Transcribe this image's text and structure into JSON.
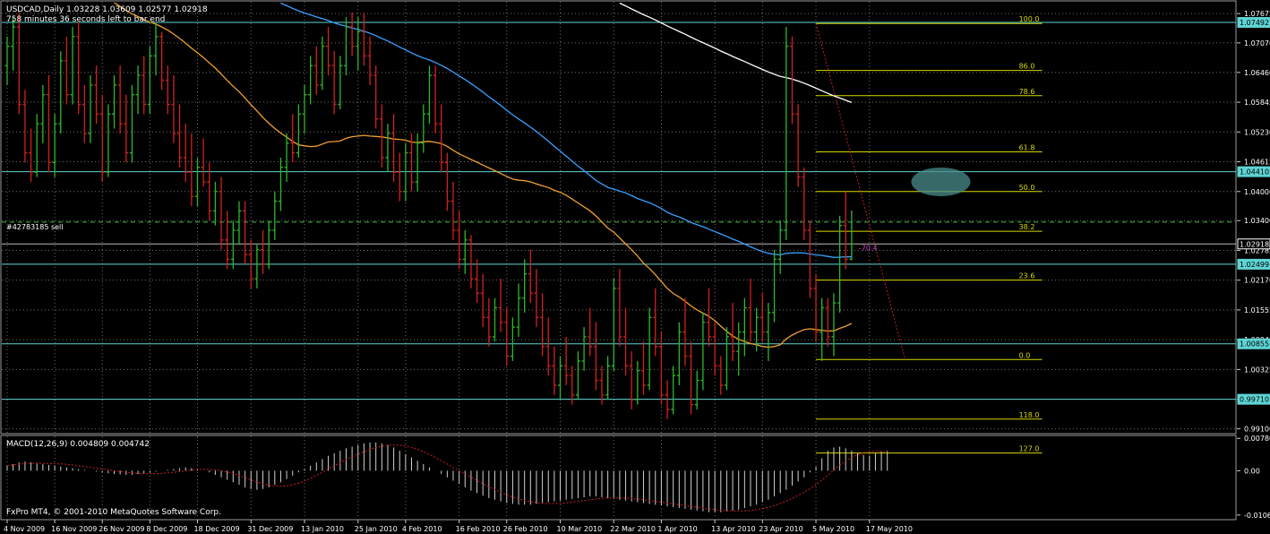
{
  "header": {
    "symbol_line": "USDCAD,Daily  1.03228 1.03609 1.02577 1.02918",
    "timer_line": "758 minutes 36 seconds left to bar end"
  },
  "order_label": "#42783185 sell",
  "pips_label": "-70.4",
  "macd_header": "MACD(12,26,9) 0.004809 0.004742",
  "copyright": "FxPro MT4, © 2001-2010 MetaQuotes Software Corp.",
  "colors": {
    "bull": "#2db82d",
    "bear": "#d22020",
    "grid": "#707070",
    "hline": "#5fd4d4",
    "fib": "#d8d800",
    "ma_orange": "#f0a030",
    "ma_blue": "#3aa0ff",
    "ma_white": "#ffffff",
    "trade": "#40c040",
    "macd_signal": "#c82020",
    "ellipse": "#4a8c8c"
  },
  "chart_data": [
    {
      "type": "candlestick-bars",
      "title": "USDCAD,Daily",
      "ylim": [
        0.99,
        1.079
      ],
      "y_tick_labels": [
        "1.07675",
        "1.07070",
        "1.06460",
        "1.05845",
        "1.05230",
        "1.04615",
        "1.04000",
        "1.03400",
        "1.02785",
        "1.02170",
        "1.01555",
        "1.00940",
        "1.00325",
        "0.99710",
        "0.99100"
      ],
      "y_tick_values": [
        1.07675,
        1.0707,
        1.0646,
        1.05845,
        1.0523,
        1.04615,
        1.04,
        1.034,
        1.02785,
        1.0217,
        1.01555,
        1.0094,
        1.00325,
        0.9971,
        0.991
      ],
      "price_labels": [
        {
          "text": "1.07492",
          "value": 1.07492,
          "style": "cyan"
        },
        {
          "text": "1.04410",
          "value": 1.0441,
          "style": "cyan"
        },
        {
          "text": "1.02918",
          "value": 1.02918,
          "style": "white"
        },
        {
          "text": "1.02499",
          "value": 1.02499,
          "style": "cyan"
        },
        {
          "text": "1.00855",
          "value": 1.00855,
          "style": "cyan"
        },
        {
          "text": "0.99710",
          "value": 0.9971,
          "style": "cyan"
        }
      ],
      "horizontal_lines": [
        1.07492,
        1.0441,
        1.02499,
        1.00855,
        0.9971
      ],
      "order_line_value": 1.0337,
      "current_price": 1.02918,
      "x_labels": [
        "4 Nov 2009",
        "16 Nov 2009",
        "26 Nov 2009",
        "8 Dec 2009",
        "18 Dec 2009",
        "31 Dec 2009",
        "13 Jan 2010",
        "25 Jan 2010",
        "4 Feb 2010",
        "16 Feb 2010",
        "26 Feb 2010",
        "10 Mar 2010",
        "22 Mar 2010",
        "1 Apr 2010",
        "13 Apr 2010",
        "23 Apr 2010",
        "5 May 2010",
        "17 May 2010"
      ],
      "x_label_bar_index": [
        0,
        8,
        16,
        24,
        32,
        41,
        50,
        59,
        67,
        76,
        84,
        93,
        102,
        110,
        119,
        127,
        136,
        145
      ],
      "fibonacci": {
        "start_bar": 136,
        "end_bar": 165,
        "levels": [
          {
            "label": "100.0",
            "value": 1.0747
          },
          {
            "label": "86.0",
            "value": 1.065
          },
          {
            "label": "78.6",
            "value": 1.0598
          },
          {
            "label": "61.8",
            "value": 1.0482
          },
          {
            "label": "50.0",
            "value": 1.04
          },
          {
            "label": "38.2",
            "value": 1.0318
          },
          {
            "label": "23.6",
            "value": 1.0217
          },
          {
            "label": "0.0",
            "value": 1.0053
          },
          {
            "label": "118.0",
            "value": 0.993
          },
          {
            "label": "127.0",
            "value": 0.986
          }
        ]
      },
      "bars": [
        [
          1.066,
          1.072,
          1.062,
          1.07
        ],
        [
          1.07,
          1.076,
          1.065,
          1.074
        ],
        [
          1.074,
          1.077,
          1.056,
          1.058
        ],
        [
          1.058,
          1.061,
          1.046,
          1.048
        ],
        [
          1.048,
          1.053,
          1.042,
          1.044
        ],
        [
          1.044,
          1.056,
          1.043,
          1.054
        ],
        [
          1.054,
          1.062,
          1.05,
          1.06
        ],
        [
          1.06,
          1.064,
          1.044,
          1.046
        ],
        [
          1.046,
          1.056,
          1.043,
          1.054
        ],
        [
          1.054,
          1.069,
          1.052,
          1.067
        ],
        [
          1.067,
          1.072,
          1.058,
          1.06
        ],
        [
          1.06,
          1.074,
          1.058,
          1.072
        ],
        [
          1.072,
          1.075,
          1.056,
          1.058
        ],
        [
          1.058,
          1.062,
          1.05,
          1.052
        ],
        [
          1.052,
          1.064,
          1.05,
          1.062
        ],
        [
          1.062,
          1.066,
          1.054,
          1.056
        ],
        [
          1.056,
          1.06,
          1.042,
          1.044
        ],
        [
          1.044,
          1.058,
          1.043,
          1.056
        ],
        [
          1.056,
          1.064,
          1.053,
          1.062
        ],
        [
          1.062,
          1.066,
          1.052,
          1.054
        ],
        [
          1.054,
          1.06,
          1.046,
          1.048
        ],
        [
          1.048,
          1.062,
          1.046,
          1.06
        ],
        [
          1.06,
          1.066,
          1.056,
          1.064
        ],
        [
          1.064,
          1.068,
          1.056,
          1.058
        ],
        [
          1.058,
          1.07,
          1.056,
          1.068
        ],
        [
          1.068,
          1.075,
          1.064,
          1.072
        ],
        [
          1.072,
          1.073,
          1.061,
          1.063
        ],
        [
          1.063,
          1.066,
          1.056,
          1.058
        ],
        [
          1.058,
          1.064,
          1.05,
          1.052
        ],
        [
          1.052,
          1.058,
          1.045,
          1.047
        ],
        [
          1.047,
          1.054,
          1.042,
          1.044
        ],
        [
          1.044,
          1.052,
          1.037,
          1.039
        ],
        [
          1.039,
          1.047,
          1.037,
          1.045
        ],
        [
          1.045,
          1.051,
          1.041,
          1.042
        ],
        [
          1.042,
          1.046,
          1.034,
          1.036
        ],
        [
          1.036,
          1.042,
          1.033,
          1.04
        ],
        [
          1.04,
          1.043,
          1.028,
          1.03
        ],
        [
          1.03,
          1.036,
          1.024,
          1.026
        ],
        [
          1.026,
          1.034,
          1.024,
          1.032
        ],
        [
          1.032,
          1.038,
          1.029,
          1.036
        ],
        [
          1.036,
          1.038,
          1.025,
          1.027
        ],
        [
          1.027,
          1.03,
          1.02,
          1.022
        ],
        [
          1.022,
          1.029,
          1.02,
          1.028
        ],
        [
          1.028,
          1.032,
          1.023,
          1.025
        ],
        [
          1.025,
          1.034,
          1.024,
          1.032
        ],
        [
          1.032,
          1.04,
          1.03,
          1.038
        ],
        [
          1.038,
          1.047,
          1.036,
          1.045
        ],
        [
          1.045,
          1.052,
          1.042,
          1.05
        ],
        [
          1.05,
          1.056,
          1.046,
          1.048
        ],
        [
          1.048,
          1.058,
          1.047,
          1.056
        ],
        [
          1.056,
          1.062,
          1.052,
          1.06
        ],
        [
          1.06,
          1.068,
          1.058,
          1.066
        ],
        [
          1.066,
          1.07,
          1.06,
          1.062
        ],
        [
          1.062,
          1.072,
          1.061,
          1.07
        ],
        [
          1.07,
          1.074,
          1.064,
          1.066
        ],
        [
          1.066,
          1.069,
          1.056,
          1.058
        ],
        [
          1.058,
          1.068,
          1.057,
          1.066
        ],
        [
          1.066,
          1.076,
          1.064,
          1.074
        ],
        [
          1.074,
          1.077,
          1.068,
          1.07
        ],
        [
          1.07,
          1.076,
          1.065,
          1.073
        ],
        [
          1.073,
          1.077,
          1.066,
          1.068
        ],
        [
          1.068,
          1.072,
          1.062,
          1.064
        ],
        [
          1.064,
          1.066,
          1.053,
          1.055
        ],
        [
          1.055,
          1.058,
          1.045,
          1.047
        ],
        [
          1.047,
          1.054,
          1.044,
          1.052
        ],
        [
          1.052,
          1.056,
          1.042,
          1.044
        ],
        [
          1.044,
          1.048,
          1.038,
          1.04
        ],
        [
          1.04,
          1.05,
          1.038,
          1.048
        ],
        [
          1.048,
          1.052,
          1.04,
          1.042
        ],
        [
          1.042,
          1.052,
          1.04,
          1.05
        ],
        [
          1.05,
          1.058,
          1.048,
          1.056
        ],
        [
          1.056,
          1.066,
          1.054,
          1.064
        ],
        [
          1.064,
          1.066,
          1.052,
          1.054
        ],
        [
          1.054,
          1.058,
          1.044,
          1.046
        ],
        [
          1.046,
          1.048,
          1.036,
          1.038
        ],
        [
          1.038,
          1.042,
          1.03,
          1.032
        ],
        [
          1.032,
          1.036,
          1.024,
          1.026
        ],
        [
          1.026,
          1.032,
          1.023,
          1.03
        ],
        [
          1.03,
          1.031,
          1.02,
          1.022
        ],
        [
          1.022,
          1.026,
          1.017,
          1.019
        ],
        [
          1.019,
          1.023,
          1.012,
          1.014
        ],
        [
          1.014,
          1.018,
          1.008,
          1.01
        ],
        [
          1.01,
          1.018,
          1.009,
          1.016
        ],
        [
          1.016,
          1.022,
          1.011,
          1.013
        ],
        [
          1.013,
          1.016,
          1.004,
          1.006
        ],
        [
          1.006,
          1.014,
          1.005,
          1.012
        ],
        [
          1.012,
          1.021,
          1.01,
          1.018
        ],
        [
          1.018,
          1.026,
          1.015,
          1.023
        ],
        [
          1.023,
          1.028,
          1.017,
          1.019
        ],
        [
          1.019,
          1.024,
          1.012,
          1.014
        ],
        [
          1.014,
          1.019,
          1.006,
          1.008
        ],
        [
          1.008,
          1.014,
          1.002,
          1.004
        ],
        [
          1.004,
          1.008,
          0.998,
          1.0
        ],
        [
          1.0,
          1.006,
          0.997,
          1.004
        ],
        [
          1.004,
          1.01,
          1.0,
          1.002
        ],
        [
          1.002,
          1.004,
          0.996,
          0.998
        ],
        [
          0.998,
          1.007,
          0.997,
          1.005
        ],
        [
          1.005,
          1.012,
          1.003,
          1.01
        ],
        [
          1.01,
          1.016,
          1.006,
          1.008
        ],
        [
          1.008,
          1.013,
          0.999,
          1.001
        ],
        [
          1.001,
          1.004,
          0.996,
          0.998
        ],
        [
          0.998,
          1.006,
          0.997,
          1.004
        ],
        [
          1.004,
          1.022,
          1.003,
          1.02
        ],
        [
          1.02,
          1.024,
          1.008,
          1.01
        ],
        [
          1.01,
          1.016,
          1.002,
          1.004
        ],
        [
          1.004,
          1.007,
          0.995,
          0.997
        ],
        [
          0.997,
          1.005,
          0.996,
          1.003
        ],
        [
          1.003,
          1.009,
          0.998,
          1.0
        ],
        [
          1.0,
          1.016,
          0.999,
          1.014
        ],
        [
          1.014,
          1.02,
          1.006,
          1.008
        ],
        [
          1.008,
          1.011,
          0.996,
          0.998
        ],
        [
          0.998,
          1.001,
          0.993,
          0.995
        ],
        [
          0.995,
          1.004,
          0.994,
          1.002
        ],
        [
          1.002,
          1.013,
          1.0,
          1.011
        ],
        [
          1.011,
          1.018,
          1.004,
          1.006
        ],
        [
          1.006,
          1.009,
          0.994,
          0.996
        ],
        [
          0.996,
          1.003,
          0.995,
          1.001
        ],
        [
          1.001,
          1.015,
          0.999,
          1.013
        ],
        [
          1.013,
          1.02,
          1.008,
          1.01
        ],
        [
          1.01,
          1.013,
          1.002,
          1.004
        ],
        [
          1.004,
          1.006,
          0.998,
          1.0
        ],
        [
          1.0,
          1.012,
          0.999,
          1.01
        ],
        [
          1.01,
          1.017,
          1.005,
          1.007
        ],
        [
          1.007,
          1.013,
          1.002,
          1.011
        ],
        [
          1.011,
          1.018,
          1.006,
          1.016
        ],
        [
          1.016,
          1.022,
          1.009,
          1.011
        ],
        [
          1.011,
          1.016,
          1.007,
          1.014
        ],
        [
          1.014,
          1.019,
          1.009,
          1.011
        ],
        [
          1.011,
          1.017,
          1.005,
          1.015
        ],
        [
          1.015,
          1.028,
          1.013,
          1.026
        ],
        [
          1.026,
          1.034,
          1.023,
          1.032
        ],
        [
          1.032,
          1.074,
          1.03,
          1.07
        ],
        [
          1.07,
          1.072,
          1.054,
          1.056
        ],
        [
          1.056,
          1.058,
          1.041,
          1.043
        ],
        [
          1.043,
          1.045,
          1.03,
          1.032
        ],
        [
          1.032,
          1.034,
          1.018,
          1.02
        ],
        [
          1.02,
          1.023,
          1.009,
          1.011
        ],
        [
          1.011,
          1.018,
          1.005,
          1.016
        ],
        [
          1.016,
          1.018,
          1.008,
          1.01
        ],
        [
          1.01,
          1.019,
          1.006,
          1.017
        ],
        [
          1.017,
          1.035,
          1.015,
          1.033
        ],
        [
          1.033,
          1.04,
          1.024,
          1.026
        ],
        [
          1.026,
          1.0361,
          1.0258,
          1.0292
        ]
      ],
      "macd": {
        "ylim": [
          -0.0118,
          0.0085
        ],
        "y_tick_labels": [
          "0.00780",
          "0.00",
          "-0.01068"
        ],
        "y_tick_values": [
          0.0078,
          0.0,
          -0.01068
        ],
        "histogram": [
          0.0012,
          0.0016,
          0.002,
          0.0022,
          0.002,
          0.0018,
          0.0016,
          0.0014,
          0.0012,
          0.001,
          0.0008,
          0.0006,
          0.0004,
          0.0002,
          0.0,
          -0.0002,
          -0.0004,
          -0.0006,
          -0.0008,
          -0.0009,
          -0.001,
          -0.001,
          -0.0008,
          -0.0006,
          -0.0004,
          -0.0002,
          0.0,
          0.0002,
          0.0004,
          0.0006,
          0.0008,
          0.0006,
          0.0004,
          0.0,
          -0.0004,
          -0.001,
          -0.0016,
          -0.0022,
          -0.0028,
          -0.0034,
          -0.004,
          -0.0044,
          -0.0046,
          -0.0044,
          -0.004,
          -0.0034,
          -0.0028,
          -0.002,
          -0.0012,
          -0.0004,
          0.0004,
          0.0012,
          0.002,
          0.0028,
          0.0036,
          0.0042,
          0.0048,
          0.0054,
          0.0058,
          0.0062,
          0.0066,
          0.0068,
          0.0068,
          0.0066,
          0.0062,
          0.0056,
          0.0048,
          0.004,
          0.0032,
          0.0024,
          0.0016,
          0.0008,
          0.0,
          -0.0008,
          -0.0016,
          -0.0024,
          -0.0032,
          -0.004,
          -0.0048,
          -0.0054,
          -0.006,
          -0.0066,
          -0.007,
          -0.0074,
          -0.0078,
          -0.008,
          -0.0082,
          -0.0082,
          -0.0082,
          -0.008,
          -0.0078,
          -0.0076,
          -0.0074,
          -0.0072,
          -0.007,
          -0.0068,
          -0.0066,
          -0.0064,
          -0.0062,
          -0.0062,
          -0.0064,
          -0.0066,
          -0.0068,
          -0.007,
          -0.0072,
          -0.0074,
          -0.0076,
          -0.0078,
          -0.008,
          -0.0082,
          -0.0084,
          -0.0086,
          -0.0088,
          -0.009,
          -0.0092,
          -0.0094,
          -0.0096,
          -0.0098,
          -0.01,
          -0.01,
          -0.01,
          -0.0098,
          -0.0096,
          -0.0094,
          -0.009,
          -0.0086,
          -0.0082,
          -0.0076,
          -0.007,
          -0.0062,
          -0.0054,
          -0.0046,
          -0.0036,
          -0.0026,
          -0.0016,
          -0.0004,
          0.001,
          0.003,
          0.0048,
          0.0056,
          0.0058,
          0.0054,
          0.0048,
          0.0042,
          0.0038,
          0.0036,
          0.0042,
          0.0046,
          0.0048
        ]
      }
    }
  ]
}
